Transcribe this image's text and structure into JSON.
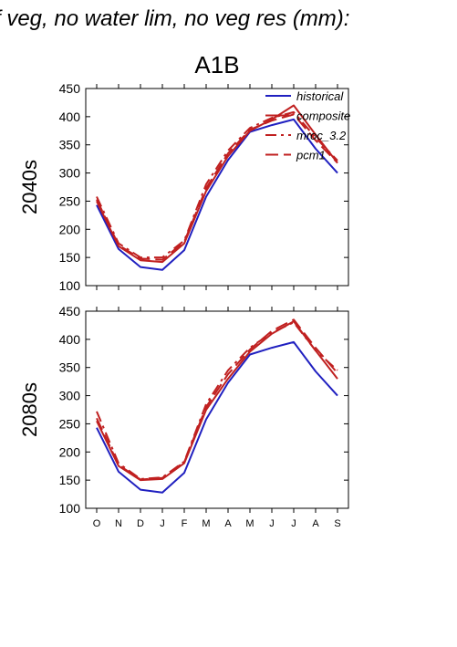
{
  "figure_title": "f veg, no water lim, no veg res (mm):",
  "scenario": "A1B",
  "colors": {
    "historical": "#2020c0",
    "future": "#c02020"
  },
  "chart_data": [
    {
      "type": "line",
      "row_label": "2040s",
      "categories": [
        "O",
        "N",
        "D",
        "J",
        "F",
        "M",
        "A",
        "M",
        "J",
        "J",
        "A",
        "S"
      ],
      "ylim": [
        100,
        450
      ],
      "yticks": [
        100,
        150,
        200,
        250,
        300,
        350,
        400,
        450
      ],
      "legend_placement": "top-right",
      "series": [
        {
          "name": "historical",
          "style": "solid",
          "color": "#2020c0",
          "values": [
            243,
            165,
            133,
            128,
            163,
            258,
            323,
            373,
            385,
            395,
            343,
            300
          ]
        },
        {
          "name": "composite",
          "style": "solid",
          "color": "#c02020",
          "values": [
            250,
            170,
            145,
            142,
            175,
            268,
            330,
            375,
            395,
            420,
            368,
            318
          ]
        },
        {
          "name": "mroc_3.2",
          "style": "dashdot",
          "color": "#c02020",
          "values": [
            258,
            175,
            150,
            150,
            180,
            280,
            340,
            380,
            398,
            408,
            363,
            322
          ]
        },
        {
          "name": "pcm1",
          "style": "dash",
          "color": "#c02020",
          "values": [
            253,
            172,
            148,
            146,
            178,
            273,
            335,
            377,
            393,
            404,
            358,
            318
          ]
        }
      ]
    },
    {
      "type": "line",
      "row_label": "2080s",
      "categories": [
        "O",
        "N",
        "D",
        "J",
        "F",
        "M",
        "A",
        "M",
        "J",
        "J",
        "A",
        "S"
      ],
      "ylim": [
        100,
        450
      ],
      "yticks": [
        100,
        150,
        200,
        250,
        300,
        350,
        400,
        450
      ],
      "legend_placement": "none",
      "series": [
        {
          "name": "historical",
          "style": "solid",
          "color": "#2020c0",
          "values": [
            243,
            165,
            133,
            128,
            163,
            258,
            323,
            373,
            385,
            395,
            343,
            300
          ]
        },
        {
          "name": "composite",
          "style": "solid",
          "color": "#c02020",
          "values": [
            255,
            175,
            150,
            152,
            180,
            275,
            330,
            378,
            410,
            432,
            380,
            330
          ]
        },
        {
          "name": "mroc_3.2",
          "style": "dashdot",
          "color": "#c02020",
          "values": [
            272,
            180,
            152,
            155,
            183,
            285,
            345,
            385,
            412,
            430,
            380,
            345
          ]
        },
        {
          "name": "pcm1",
          "style": "dash",
          "color": "#c02020",
          "values": [
            260,
            177,
            151,
            154,
            182,
            280,
            338,
            382,
            415,
            435,
            385,
            340
          ]
        }
      ]
    }
  ]
}
